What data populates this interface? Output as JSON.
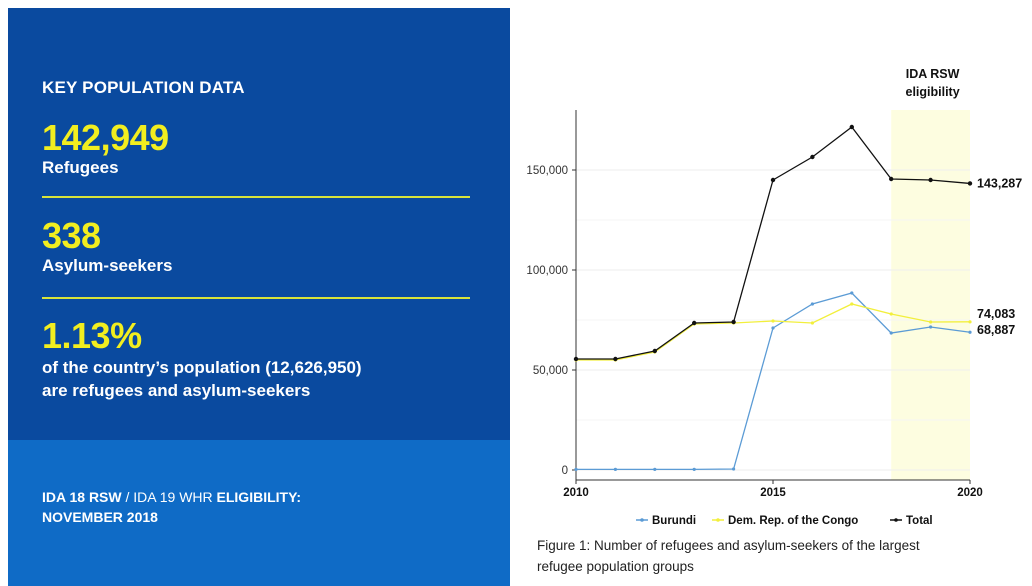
{
  "panel": {
    "heading": "KEY POPULATION DATA",
    "refugees_value": "142,949",
    "refugees_label": "Refugees",
    "asylum_value": "338",
    "asylum_label": "Asylum-seekers",
    "pct_value": "1.13%",
    "pct_line1": "of the country’s population (12,626,950)",
    "pct_line2": "are refugees and asylum-seekers",
    "elig_part1": "IDA 18 RSW",
    "elig_part2": " / IDA 19 WHR ",
    "elig_part3": "ELIGIBILITY:",
    "elig_part4": "NOVEMBER 2018",
    "colors": {
      "dark_blue": "#0a4a9f",
      "mid_blue": "#0f6bc6",
      "accent_yellow": "#f2ee1f"
    }
  },
  "chart_data": {
    "type": "line",
    "title": "",
    "xlabel": "",
    "ylabel": "",
    "x": [
      2010,
      2011,
      2012,
      2013,
      2014,
      2015,
      2016,
      2017,
      2018,
      2019,
      2020
    ],
    "xlim": [
      2010,
      2020
    ],
    "ylim": [
      -5000,
      180000
    ],
    "x_ticks": [
      2010,
      2015,
      2020
    ],
    "x_tick_labels": [
      "2010",
      "2015",
      "2020"
    ],
    "y_ticks": [
      0,
      50000,
      100000,
      150000
    ],
    "y_tick_labels": [
      "0",
      "50,000",
      "100,000",
      "150,000"
    ],
    "grid": "light horizontal",
    "legend_position": "bottom",
    "series": [
      {
        "name": "Burundi",
        "color": "#5b9bd5",
        "values": [
          300,
          300,
          300,
          300,
          500,
          71000,
          83000,
          88500,
          68500,
          71500,
          68887
        ]
      },
      {
        "name": "Dem. Rep. of the Congo",
        "color": "#f2ef3c",
        "values": [
          55000,
          55000,
          59000,
          73000,
          73500,
          74500,
          73500,
          83000,
          78000,
          74000,
          74083
        ]
      },
      {
        "name": "Total",
        "color": "#111111",
        "values": [
          55500,
          55500,
          59500,
          73500,
          74000,
          145000,
          156500,
          171500,
          145500,
          145000,
          143287
        ]
      }
    ],
    "end_labels": [
      {
        "series": "Total",
        "text": "143,287"
      },
      {
        "series": "Dem. Rep. of the Congo",
        "text": "74,083"
      },
      {
        "series": "Burundi",
        "text": "68,887"
      }
    ],
    "highlight": {
      "from": 2018,
      "to": 2020,
      "color": "#fdfde0",
      "label_line1": "IDA RSW",
      "label_line2": "eligibility"
    },
    "caption_line1": "Figure 1: Number of refugees and asylum-seekers of the largest",
    "caption_line2": "refugee population groups"
  }
}
